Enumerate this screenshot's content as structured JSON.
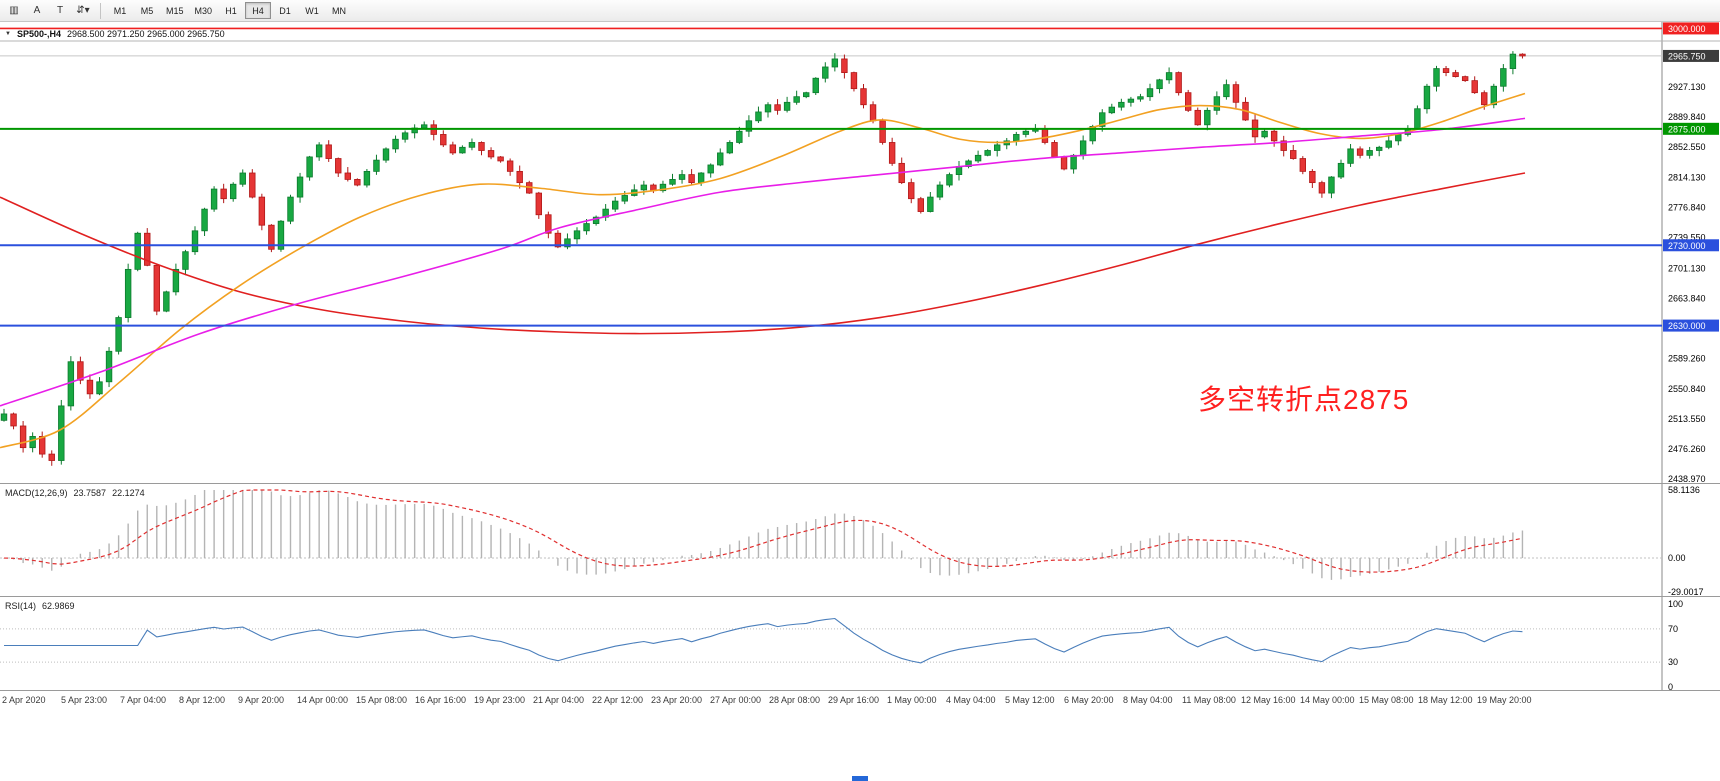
{
  "toolbar": {
    "tools": [
      {
        "id": "chart-window",
        "glyph": "▥"
      },
      {
        "id": "annotate-a",
        "glyph": "A"
      },
      {
        "id": "annotate-t",
        "glyph": "T"
      },
      {
        "id": "arrange-arrows",
        "glyph": "⇵",
        "caret": "▾"
      }
    ],
    "timeframes": [
      "M1",
      "M5",
      "M15",
      "M30",
      "H1",
      "H4",
      "D1",
      "W1",
      "MN"
    ],
    "active_timeframe": "H4"
  },
  "chart": {
    "collapse_icon": "▼",
    "symbol_period": "SP500-,H4",
    "ohlc_text": "2968.500 2971.250 2965.000 2965.750",
    "annotation": "多空转折点2875",
    "price_ticks": [
      "2965.750",
      "2927.130",
      "2889.840",
      "2852.550",
      "2814.130",
      "2776.840",
      "2739.550",
      "2701.130",
      "2663.840",
      "2626.550",
      "2589.260",
      "2550.840",
      "2513.550",
      "2476.260",
      "2438.970"
    ],
    "hlines": [
      {
        "price": 3000.0,
        "label": "3000.000",
        "color": "#f02020",
        "width": 1.6
      },
      {
        "price": 2875.0,
        "label": "2875.000",
        "color": "#009600",
        "width": 2
      },
      {
        "price": 2730.0,
        "label": "2730.000",
        "color": "#2b50dd",
        "width": 2
      },
      {
        "price": 2630.0,
        "label": "2630.000",
        "color": "#2b50dd",
        "width": 2
      }
    ],
    "current_price": {
      "value": 2965.75,
      "label": "2965.750",
      "bg": "#3c3c3c"
    },
    "price_range": [
      2434,
      3008
    ],
    "colors": {
      "up": "#18a842",
      "up_dark": "#0c7a2d",
      "down": "#e53535",
      "down_dark": "#b01818",
      "ma_slow": "#e02020",
      "ma_mid": "#f2a122",
      "ma_fast": "#e81ee8"
    }
  },
  "macd": {
    "title": "MACD(12,26,9)",
    "value_main": "23.7587",
    "value_signal": "22.1274",
    "axis": [
      "58.1136",
      "0.00",
      "-29.0017"
    ],
    "range": [
      -29.0017,
      58.1136
    ],
    "fast": 12,
    "slow": 26,
    "signal": 9,
    "histogram_color": "#b4b4b4",
    "signal_color": "#e03030"
  },
  "rsi": {
    "title": "RSI(14)",
    "value": "62.9869",
    "axis": [
      "100",
      "70",
      "30",
      "0"
    ],
    "levels": [
      70,
      30
    ],
    "period": 14,
    "line_color": "#4a7ebb",
    "range": [
      0,
      100
    ]
  },
  "time_axis": {
    "labels": [
      "2 Apr 2020",
      "5 Apr 23:00",
      "7 Apr 04:00",
      "8 Apr 12:00",
      "9 Apr 20:00",
      "14 Apr 00:00",
      "15 Apr 08:00",
      "16 Apr 16:00",
      "19 Apr 23:00",
      "21 Apr 04:00",
      "22 Apr 12:00",
      "23 Apr 20:00",
      "27 Apr 00:00",
      "28 Apr 08:00",
      "29 Apr 16:00",
      "1 May 00:00",
      "4 May 04:00",
      "5 May 12:00",
      "6 May 20:00",
      "8 May 04:00",
      "11 May 08:00",
      "12 May 16:00",
      "14 May 00:00",
      "15 May 08:00",
      "18 May 12:00",
      "19 May 20:00"
    ]
  },
  "chart_data": {
    "type": "candlestick",
    "symbol": "SP500-",
    "timeframe": "H4",
    "bars": 160,
    "last_ohlc": {
      "open": 2968.5,
      "high": 2971.25,
      "low": 2965.0,
      "close": 2965.75
    },
    "price_range": [
      2434,
      3008
    ],
    "closes": [
      2520,
      2505,
      2478,
      2492,
      2470,
      2462,
      2530,
      2585,
      2562,
      2545,
      2560,
      2598,
      2640,
      2700,
      2745,
      2705,
      2648,
      2672,
      2700,
      2722,
      2748,
      2775,
      2800,
      2788,
      2806,
      2820,
      2790,
      2755,
      2725,
      2760,
      2790,
      2815,
      2840,
      2855,
      2838,
      2820,
      2812,
      2805,
      2822,
      2836,
      2850,
      2862,
      2870,
      2876,
      2880,
      2868,
      2855,
      2845,
      2852,
      2858,
      2848,
      2840,
      2835,
      2822,
      2808,
      2795,
      2768,
      2745,
      2728,
      2738,
      2748,
      2757,
      2765,
      2775,
      2785,
      2792,
      2799,
      2805,
      2798,
      2806,
      2812,
      2818,
      2808,
      2820,
      2830,
      2845,
      2858,
      2872,
      2885,
      2896,
      2905,
      2898,
      2908,
      2915,
      2920,
      2938,
      2952,
      2962,
      2945,
      2925,
      2905,
      2885,
      2858,
      2832,
      2808,
      2788,
      2772,
      2790,
      2805,
      2818,
      2828,
      2835,
      2842,
      2848,
      2855,
      2860,
      2868,
      2872,
      2875,
      2858,
      2840,
      2825,
      2842,
      2860,
      2878,
      2895,
      2902,
      2908,
      2912,
      2915,
      2925,
      2936,
      2945,
      2920,
      2898,
      2880,
      2898,
      2915,
      2930,
      2908,
      2886,
      2865,
      2872,
      2860,
      2848,
      2838,
      2822,
      2808,
      2795,
      2815,
      2832,
      2850,
      2842,
      2848,
      2852,
      2860,
      2868,
      2875,
      2900,
      2928,
      2950,
      2945,
      2940,
      2935,
      2920,
      2905,
      2928,
      2950,
      2968,
      2965.75
    ],
    "moving_averages": [
      {
        "name": "slow-red",
        "color_key": "ma_slow",
        "points": [
          [
            0,
            2790
          ],
          [
            80,
            2745
          ],
          [
            160,
            2705
          ],
          [
            240,
            2672
          ],
          [
            320,
            2650
          ],
          [
            400,
            2636
          ],
          [
            480,
            2627
          ],
          [
            560,
            2622
          ],
          [
            640,
            2620
          ],
          [
            720,
            2622
          ],
          [
            800,
            2628
          ],
          [
            880,
            2640
          ],
          [
            960,
            2658
          ],
          [
            1040,
            2680
          ],
          [
            1120,
            2705
          ],
          [
            1200,
            2732
          ],
          [
            1280,
            2757
          ],
          [
            1360,
            2780
          ],
          [
            1440,
            2800
          ],
          [
            1525,
            2820
          ]
        ]
      },
      {
        "name": "mid-orange",
        "color_key": "ma_mid",
        "points": [
          [
            0,
            2478
          ],
          [
            60,
            2500
          ],
          [
            120,
            2560
          ],
          [
            180,
            2625
          ],
          [
            240,
            2680
          ],
          [
            300,
            2726
          ],
          [
            360,
            2765
          ],
          [
            420,
            2792
          ],
          [
            480,
            2806
          ],
          [
            540,
            2801
          ],
          [
            600,
            2793
          ],
          [
            660,
            2799
          ],
          [
            720,
            2813
          ],
          [
            780,
            2840
          ],
          [
            840,
            2872
          ],
          [
            880,
            2886
          ],
          [
            920,
            2876
          ],
          [
            960,
            2862
          ],
          [
            1000,
            2858
          ],
          [
            1040,
            2863
          ],
          [
            1080,
            2873
          ],
          [
            1120,
            2886
          ],
          [
            1160,
            2899
          ],
          [
            1200,
            2904
          ],
          [
            1240,
            2899
          ],
          [
            1280,
            2883
          ],
          [
            1320,
            2869
          ],
          [
            1360,
            2863
          ],
          [
            1400,
            2869
          ],
          [
            1440,
            2883
          ],
          [
            1480,
            2901
          ],
          [
            1525,
            2919
          ]
        ]
      },
      {
        "name": "fast-magenta",
        "color_key": "ma_fast",
        "points": [
          [
            0,
            2530
          ],
          [
            100,
            2572
          ],
          [
            200,
            2620
          ],
          [
            300,
            2658
          ],
          [
            400,
            2690
          ],
          [
            500,
            2725
          ],
          [
            560,
            2752
          ],
          [
            640,
            2775
          ],
          [
            720,
            2796
          ],
          [
            800,
            2808
          ],
          [
            880,
            2818
          ],
          [
            960,
            2828
          ],
          [
            1040,
            2838
          ],
          [
            1120,
            2845
          ],
          [
            1200,
            2852
          ],
          [
            1280,
            2858
          ],
          [
            1360,
            2866
          ],
          [
            1440,
            2874
          ],
          [
            1525,
            2888
          ]
        ]
      }
    ],
    "horizontal_levels": [
      3000.0,
      2875.0,
      2730.0,
      2630.0
    ],
    "indicators": [
      {
        "type": "MACD",
        "params": [
          12,
          26,
          9
        ],
        "last_values": [
          23.7587,
          22.1274
        ],
        "axis_range": [
          -29.0017,
          58.1136
        ]
      },
      {
        "type": "RSI",
        "params": [
          14
        ],
        "last_value": 62.9869,
        "levels": [
          30,
          70
        ],
        "axis_range": [
          0,
          100
        ]
      }
    ]
  }
}
